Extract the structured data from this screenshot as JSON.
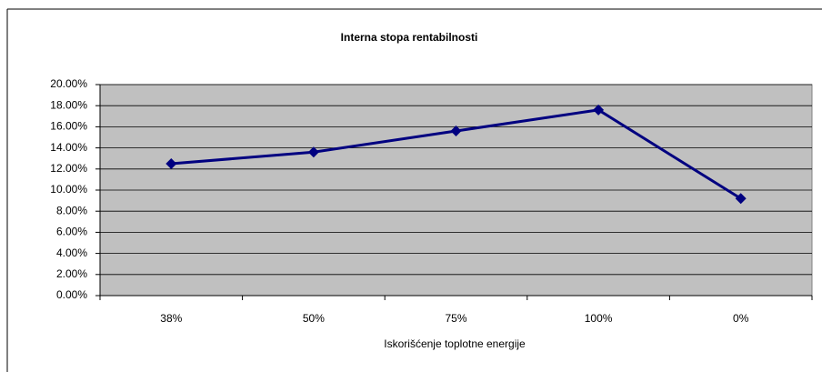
{
  "chart_data": {
    "type": "line",
    "title": "Interna stopa rentabilnosti",
    "x_label": "Iskorišćenje toplotne energije",
    "categories": [
      "38%",
      "50%",
      "75%",
      "100%",
      "0%"
    ],
    "values": [
      12.5,
      13.6,
      15.6,
      17.6,
      9.2
    ],
    "color": "#000080",
    "ylim": [
      0,
      20
    ],
    "yticks": [
      {
        "value": 0,
        "label": "0.00%"
      },
      {
        "value": 2,
        "label": "2.00%"
      },
      {
        "value": 4,
        "label": "4.00%"
      },
      {
        "value": 6,
        "label": "6.00%"
      },
      {
        "value": 8,
        "label": "8.00%"
      },
      {
        "value": 10,
        "label": "10.00%"
      },
      {
        "value": 12,
        "label": "12.00%"
      },
      {
        "value": 14,
        "label": "14.00%"
      },
      {
        "value": 16,
        "label": "16.00%"
      },
      {
        "value": 18,
        "label": "18.00%"
      },
      {
        "value": 20,
        "label": "20.00%"
      }
    ],
    "grid": true
  }
}
